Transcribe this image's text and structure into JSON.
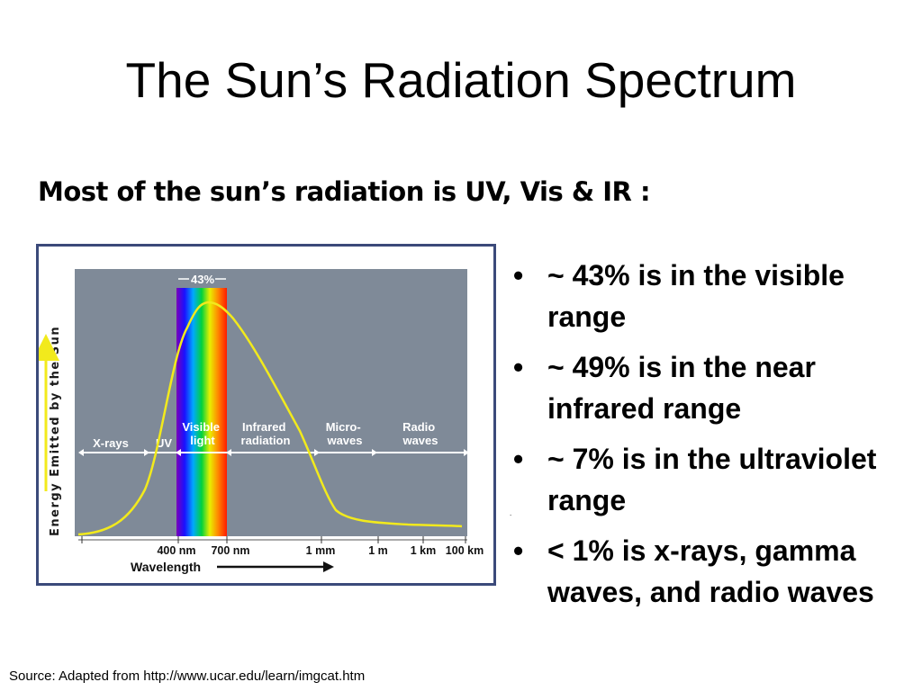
{
  "slide": {
    "title": "The Sun’s Radiation Spectrum",
    "subtitle": "Most of the sun’s radiation is UV, Vis & IR :",
    "source": "Source: Adapted from http://www.ucar.edu/learn/imgcat.htm",
    "stray_mark": "."
  },
  "bullets": [
    {
      "marker": "•",
      "text": "~ 43% is in the visible range"
    },
    {
      "marker": "•",
      "text": "~ 49% is in the near infrared range"
    },
    {
      "marker": "•",
      "text": "~ 7% is in the ultraviolet range"
    },
    {
      "marker": "•",
      "text": "< 1% is x-rays, gamma waves, and radio waves"
    }
  ],
  "figure": {
    "y_axis_label": "Energy Emitted by the Sun",
    "x_axis_label": "Wavelength",
    "visible_percent_label": "43%",
    "regions": [
      {
        "lines": [
          "X-rays"
        ]
      },
      {
        "lines": [
          "UV"
        ]
      },
      {
        "lines": [
          "Visible",
          "light"
        ]
      },
      {
        "lines": [
          "Infrared",
          "radiation"
        ]
      },
      {
        "lines": [
          "Micro-",
          "waves"
        ]
      },
      {
        "lines": [
          "Radio",
          "waves"
        ]
      }
    ],
    "ticks": [
      "400 nm",
      "700 nm",
      "1 mm",
      "1 m",
      "1 km",
      "100 km"
    ],
    "colors": {
      "plot_background": "#7f8a98",
      "curve": "#f2ea1c",
      "axis_arrow": "#f2ea1c",
      "frame_border": "#3b4a7a",
      "region_text": "#ffffff"
    }
  }
}
